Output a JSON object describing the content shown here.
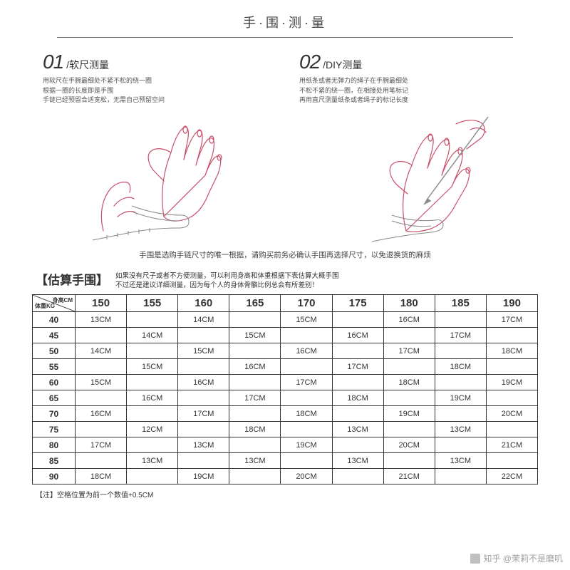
{
  "title": "手·围·测·量",
  "methods": [
    {
      "num": "01",
      "title": "/软尺测量",
      "desc": "用软尺在手腕最细处不紧不松的绕一圈\n根据一圈的长度即是手围\n手链已经预留合适宽松，无需自己预留空间"
    },
    {
      "num": "02",
      "title": "/DIY测量",
      "desc": "用纸条或者无弹力的绳子在手腕最细处\n不松不紧的绕一圈，在相接处用笔标记\n再用直尺测量纸条或者绳子的标记长度"
    }
  ],
  "mid_note": "手围是选购手链尺寸的唯一根据，请购买前务必确认手围再选择尺寸，以免退换货的麻烦",
  "estimate": {
    "title": "【估算手围】",
    "note": "如果没有尺子或者不方便测量，可以利用身高和体重根据下表估算大概手围\n不过还是建议详细测量，因为每个人的身体骨骼比例总会有所差别！"
  },
  "table": {
    "corner_top": "身高CM",
    "corner_bottom": "体重KG",
    "heights": [
      "150",
      "155",
      "160",
      "165",
      "170",
      "175",
      "180",
      "185",
      "190"
    ],
    "weights": [
      "40",
      "45",
      "50",
      "55",
      "60",
      "65",
      "70",
      "75",
      "80",
      "85",
      "90"
    ],
    "rows": [
      [
        "13CM",
        "",
        "14CM",
        "",
        "15CM",
        "",
        "16CM",
        "",
        "17CM"
      ],
      [
        "",
        "14CM",
        "",
        "15CM",
        "",
        "16CM",
        "",
        "17CM",
        ""
      ],
      [
        "14CM",
        "",
        "15CM",
        "",
        "16CM",
        "",
        "17CM",
        "",
        "18CM"
      ],
      [
        "",
        "15CM",
        "",
        "16CM",
        "",
        "17CM",
        "",
        "18CM",
        ""
      ],
      [
        "15CM",
        "",
        "16CM",
        "",
        "17CM",
        "",
        "18CM",
        "",
        "19CM"
      ],
      [
        "",
        "16CM",
        "",
        "17CM",
        "",
        "18CM",
        "",
        "19CM",
        ""
      ],
      [
        "16CM",
        "",
        "17CM",
        "",
        "18CM",
        "",
        "19CM",
        "",
        "20CM"
      ],
      [
        "",
        "12CM",
        "",
        "18CM",
        "",
        "13CM",
        "",
        "13CM",
        ""
      ],
      [
        "17CM",
        "",
        "13CM",
        "",
        "19CM",
        "",
        "20CM",
        "",
        "21CM"
      ],
      [
        "",
        "13CM",
        "",
        "13CM",
        "",
        "13CM",
        "",
        "13CM",
        ""
      ],
      [
        "18CM",
        "",
        "19CM",
        "",
        "20CM",
        "",
        "21CM",
        "",
        "22CM"
      ]
    ]
  },
  "footnote": "【注】空格位置为前一个数值+0.5CM",
  "watermark": "知乎 @茉莉不是磨叽",
  "colors": {
    "hand_stroke": "#c94f6a",
    "tape_stroke": "#888888",
    "border": "#333333"
  }
}
